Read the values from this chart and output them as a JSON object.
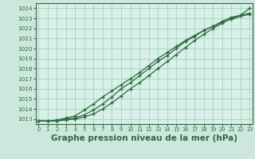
{
  "background_color": "#cce8dd",
  "plot_bg_color": "#d8f0e8",
  "grid_color": "#99ccbb",
  "line_color": "#2d6b3c",
  "xlabel": "Graphe pression niveau de la mer (hPa)",
  "xlabel_fontsize": 7.5,
  "ylim": [
    1012.5,
    1024.5
  ],
  "xlim": [
    -0.3,
    23.3
  ],
  "yticks": [
    1013,
    1014,
    1015,
    1016,
    1017,
    1018,
    1019,
    1020,
    1021,
    1022,
    1023,
    1024
  ],
  "xticks": [
    0,
    1,
    2,
    3,
    4,
    5,
    6,
    7,
    8,
    9,
    10,
    11,
    12,
    13,
    14,
    15,
    16,
    17,
    18,
    19,
    20,
    21,
    22,
    23
  ],
  "series1": [
    1012.8,
    1012.8,
    1012.8,
    1012.9,
    1013.0,
    1013.2,
    1013.5,
    1014.0,
    1014.6,
    1015.3,
    1016.0,
    1016.6,
    1017.3,
    1018.0,
    1018.7,
    1019.4,
    1020.1,
    1020.8,
    1021.4,
    1022.0,
    1022.5,
    1023.0,
    1023.3,
    1024.0
  ],
  "series2": [
    1012.8,
    1012.8,
    1012.8,
    1013.0,
    1013.1,
    1013.4,
    1013.9,
    1014.5,
    1015.2,
    1016.0,
    1016.6,
    1017.3,
    1018.0,
    1018.7,
    1019.3,
    1020.0,
    1020.7,
    1021.2,
    1021.8,
    1022.2,
    1022.7,
    1023.1,
    1023.3,
    1023.5
  ],
  "series3": [
    1012.8,
    1012.8,
    1012.9,
    1013.1,
    1013.3,
    1013.9,
    1014.5,
    1015.2,
    1015.8,
    1016.4,
    1017.0,
    1017.6,
    1018.3,
    1019.0,
    1019.6,
    1020.2,
    1020.8,
    1021.3,
    1021.8,
    1022.2,
    1022.6,
    1022.9,
    1023.2,
    1023.4
  ]
}
